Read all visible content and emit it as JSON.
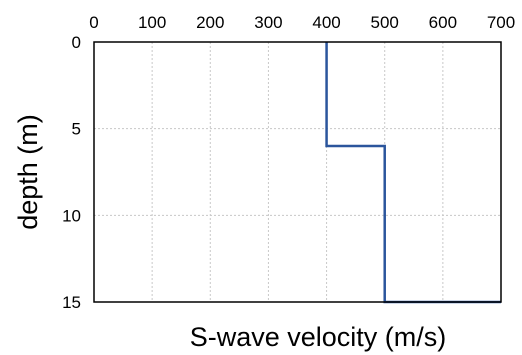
{
  "chart_data": {
    "type": "line",
    "xlabel": "S-wave velocity (m/s)",
    "ylabel": "depth (m)",
    "xlim": [
      0,
      700
    ],
    "ylim": [
      0,
      15
    ],
    "y_inverted": true,
    "x_axis_position": "top",
    "x_ticks": [
      "0",
      "100",
      "200",
      "300",
      "400",
      "500",
      "600",
      "700"
    ],
    "y_ticks": [
      "0",
      "5",
      "10",
      "15"
    ],
    "grid": true,
    "series": [
      {
        "points": [
          {
            "velocity": 400,
            "depth": 0
          },
          {
            "velocity": 400,
            "depth": 6
          },
          {
            "velocity": 500,
            "depth": 6
          },
          {
            "velocity": 500,
            "depth": 15
          },
          {
            "velocity": 700,
            "depth": 15
          }
        ]
      }
    ],
    "line_color": "#2b559c"
  }
}
